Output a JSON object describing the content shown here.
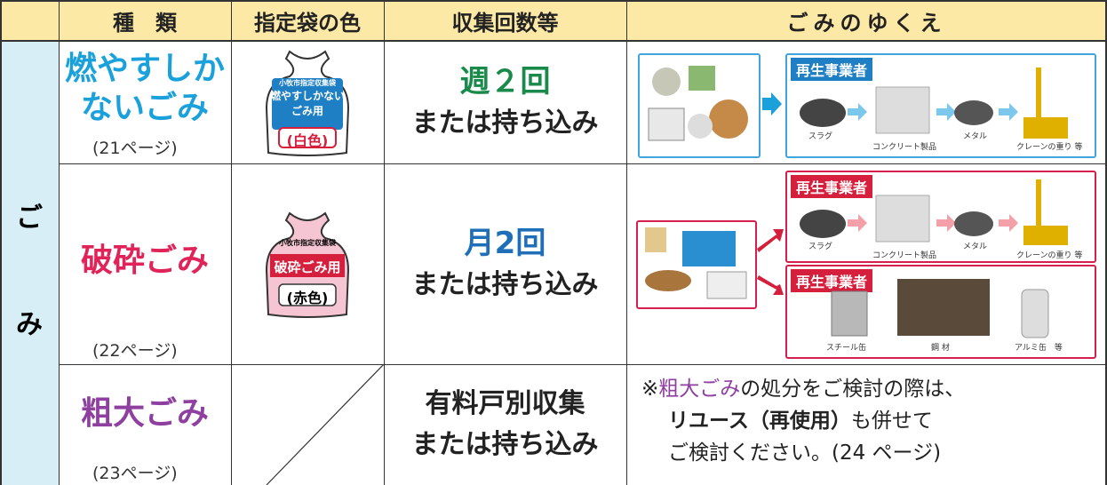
{
  "header": {
    "columns": [
      "種　類",
      "指定袋の色",
      "収集回数等",
      "ごみのゆくえ"
    ]
  },
  "side_label": [
    "ご",
    "み"
  ],
  "rows": [
    {
      "type": [
        "燃やすしか",
        "ないごみ"
      ],
      "page": "(21ページ)",
      "bag": {
        "issuer": "小牧市指定収集袋",
        "label": [
          "燃やすしかない",
          "ごみ用"
        ],
        "color": "(白色)"
      },
      "collection": [
        "週２回",
        "または持ち込み"
      ],
      "destination": [
        {
          "title": "再生事業者",
          "items": [
            "スラグ",
            "コンクリート製品",
            "メタル",
            "クレーンの重り 等"
          ]
        }
      ]
    },
    {
      "type": [
        "破砕ごみ"
      ],
      "page": "(22ページ)",
      "bag": {
        "issuer": "小牧市指定収集袋",
        "label": [
          "破砕ごみ用"
        ],
        "color": "(赤色)"
      },
      "collection": [
        "月2回",
        "または持ち込み"
      ],
      "destination": [
        {
          "title": "再生事業者",
          "items": [
            "スラグ",
            "コンクリート製品",
            "メタル",
            "クレーンの重り 等"
          ]
        },
        {
          "title": "再生事業者",
          "items": [
            "スチール缶",
            "鋼 材",
            "アルミ缶　等"
          ]
        }
      ]
    },
    {
      "type": [
        "粗大ごみ"
      ],
      "page": "(23ページ)",
      "collection": [
        "有料戸別収集",
        "または持ち込み"
      ],
      "note": {
        "lines": [
          [
            "※",
            "粗大ごみ",
            "の処分をご検討の際は、"
          ],
          [
            "リユース（再使用）",
            "も併せて"
          ],
          [
            "ご検討ください。(24 ページ)"
          ]
        ]
      }
    }
  ]
}
